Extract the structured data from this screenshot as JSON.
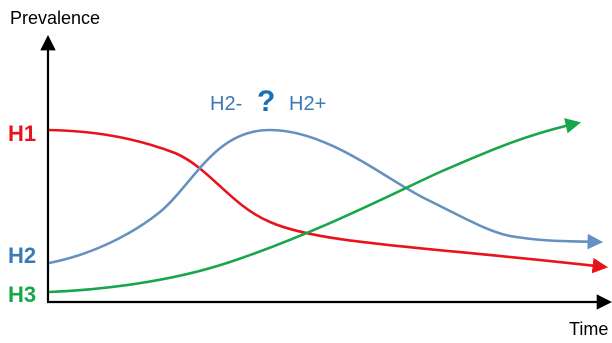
{
  "axes": {
    "y_label": "Prevalence",
    "x_label": "Time"
  },
  "series": [
    {
      "key": "h1",
      "label": "H1",
      "color": "#e8141c"
    },
    {
      "key": "h2",
      "label": "H2",
      "color": "#3a7ab5"
    },
    {
      "key": "h3",
      "label": "H3",
      "color": "#18a64a"
    }
  ],
  "annotation": {
    "left": "H2-",
    "mark": "?",
    "right": "H2+"
  },
  "colors": {
    "axis": "#000000",
    "h1": "#e8141c",
    "h2_curve": "#6690c0",
    "h2_label": "#3a7ab5",
    "h3": "#18a64a",
    "question_mark": "#1a6fb5"
  }
}
